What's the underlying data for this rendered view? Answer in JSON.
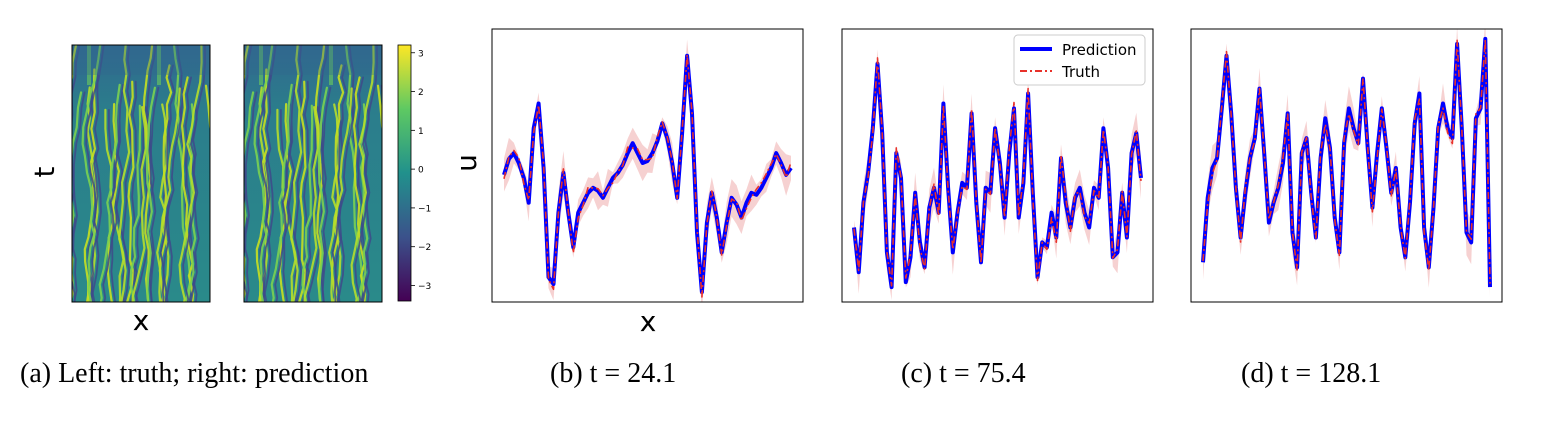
{
  "panels": [
    {
      "id": "a",
      "caption": "(a) Left: truth; right: prediction",
      "xlabel": "x",
      "ylabel": "t"
    },
    {
      "id": "b",
      "caption": "(b) t = 24.1",
      "xlabel": "x",
      "ylabel": "u"
    },
    {
      "id": "c",
      "caption": "(c) t = 75.4",
      "xlabel": "",
      "ylabel": ""
    },
    {
      "id": "d",
      "caption": "(d) t = 128.1",
      "xlabel": "",
      "ylabel": ""
    }
  ],
  "legend": {
    "prediction": "Prediction",
    "truth": "Truth"
  },
  "colorbar": {
    "ticks": [
      "3",
      "2",
      "1",
      "0",
      "−1",
      "−2",
      "−3"
    ]
  },
  "colors": {
    "prediction": "#0000ff",
    "truth": "#e8312a",
    "band": "#f4c6c6"
  },
  "chart_data": [
    {
      "type": "heatmap",
      "title": "truth",
      "xlabel": "x",
      "ylabel": "t",
      "colormap": "viridis",
      "vmin": -3.4,
      "vmax": 3.2
    },
    {
      "type": "heatmap",
      "title": "prediction",
      "xlabel": "",
      "ylabel": "",
      "colormap": "viridis",
      "vmin": -3.4,
      "vmax": 3.2
    },
    {
      "type": "line",
      "xlabel": "x",
      "ylabel": "u",
      "series": [
        {
          "name": "Prediction",
          "values": [
            0.08,
            0.24,
            0.3,
            0.2,
            0.05,
            -0.2,
            0.55,
            0.8,
            0.15,
            -0.95,
            -1.02,
            -0.3,
            0.1,
            -0.3,
            -0.65,
            -0.3,
            -0.2,
            -0.1,
            -0.05,
            -0.08,
            -0.15,
            -0.05,
            0.05,
            0.1,
            0.18,
            0.3,
            0.4,
            0.3,
            0.2,
            0.22,
            0.3,
            0.42,
            0.6,
            0.45,
            0.2,
            -0.15,
            0.5,
            1.28,
            0.7,
            -0.5,
            -1.1,
            -0.4,
            -0.1,
            -0.35,
            -0.7,
            -0.4,
            -0.15,
            -0.22,
            -0.35,
            -0.2,
            -0.1,
            -0.12,
            -0.05,
            0.05,
            0.15,
            0.3,
            0.2,
            0.08,
            0.15
          ]
        }
      ],
      "ylim": [
        -1.2,
        1.55
      ]
    },
    {
      "type": "line",
      "series": [
        {
          "name": "Prediction",
          "values": [
            -0.45,
            -0.9,
            -0.2,
            0.1,
            0.55,
            1.2,
            0.5,
            -0.7,
            -1.05,
            0.3,
            0.05,
            -1.0,
            -0.75,
            -0.1,
            -0.6,
            -0.85,
            -0.25,
            -0.05,
            -0.3,
            0.8,
            -0.05,
            -0.7,
            -0.3,
            0.0,
            -0.05,
            0.7,
            -0.2,
            -0.8,
            -0.05,
            -0.1,
            0.55,
            0.2,
            -0.35,
            0.3,
            0.75,
            -0.35,
            0.0,
            0.9,
            -0.1,
            -0.95,
            -0.6,
            -0.65,
            -0.3,
            -0.55,
            0.25,
            -0.2,
            -0.45,
            -0.15,
            -0.05,
            -0.3,
            -0.45,
            -0.05,
            -0.15,
            0.55,
            0.15,
            -0.75,
            -0.7,
            -0.1,
            -0.55,
            0.3,
            0.5,
            0.05
          ]
        }
      ],
      "legend": "top-right"
    },
    {
      "type": "line",
      "series": [
        {
          "name": "Prediction",
          "values": [
            -0.8,
            -0.15,
            0.15,
            0.25,
            0.75,
            1.28,
            0.7,
            -0.05,
            -0.55,
            -0.1,
            0.25,
            0.45,
            0.95,
            0.3,
            -0.4,
            -0.2,
            -0.05,
            0.2,
            0.7,
            -0.5,
            -0.85,
            0.3,
            0.45,
            -0.1,
            -0.55,
            0.25,
            0.65,
            0.35,
            -0.35,
            -0.7,
            0.4,
            0.75,
            0.55,
            0.4,
            1.05,
            0.35,
            -0.25,
            0.3,
            0.75,
            0.35,
            -0.1,
            0.15,
            -0.45,
            -0.75,
            -0.2,
            0.6,
            0.9,
            -0.45,
            -0.85,
            -0.25,
            0.55,
            0.8,
            0.55,
            0.45,
            1.4,
            0.55,
            -0.5,
            -0.6,
            0.65,
            0.75,
            1.45,
            -1.05
          ]
        }
      ]
    }
  ]
}
